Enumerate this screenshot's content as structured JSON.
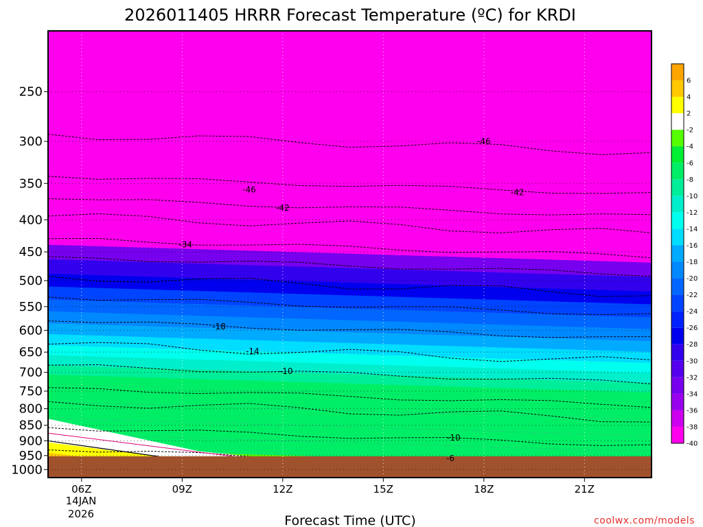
{
  "title": "2026011405 HRRR Forecast Temperature (ºC) for KRDI",
  "credit": "coolwx.com/models",
  "chart_data": {
    "type": "time-height contour",
    "xlabel": "Forecast Time (UTC)",
    "ylabel": "",
    "x_ticks": [
      "06Z",
      "09Z",
      "12Z",
      "15Z",
      "18Z",
      "21Z"
    ],
    "x_date": [
      "14JAN",
      "2026"
    ],
    "x_range_hours": [
      5,
      23
    ],
    "y_ticks": [
      250,
      300,
      350,
      400,
      450,
      500,
      550,
      600,
      650,
      700,
      750,
      800,
      850,
      900,
      950,
      1000
    ],
    "y_range_hpa": [
      1030,
      200
    ],
    "y_scale": "pressure (log)",
    "grid": "dotted",
    "surface_pressure_hpa": 970,
    "contour_interval_c": 4,
    "colorbar_labels": [
      "6",
      "4",
      "2",
      "-2",
      "-4",
      "-6",
      "-8",
      "-10",
      "-12",
      "-14",
      "-16",
      "-18",
      "-20",
      "-22",
      "-24",
      "-26",
      "-28",
      "-30",
      "-32",
      "-34",
      "-36",
      "-38",
      "-40"
    ],
    "colorbar_colors": [
      "#ffa500",
      "#ffc800",
      "#ffff00",
      "#ffffff",
      "#55ff00",
      "#00ee33",
      "#00ee66",
      "#00ee99",
      "#00eecc",
      "#00ffee",
      "#00ddff",
      "#00aaff",
      "#0088ff",
      "#0066ff",
      "#0044ff",
      "#0022ff",
      "#0000ee",
      "#3300ee",
      "#5500ee",
      "#7700ee",
      "#9900ee",
      "#cc00ee",
      "#ff00ee"
    ],
    "contour_labels": [
      {
        "text": "-46",
        "hour": 18.0,
        "hpa": 300
      },
      {
        "text": "-46",
        "hour": 11.0,
        "hpa": 358
      },
      {
        "text": "-42",
        "hour": 12.0,
        "hpa": 383
      },
      {
        "text": "-42",
        "hour": 19.0,
        "hpa": 362
      },
      {
        "text": "-34",
        "hour": 9.1,
        "hpa": 438
      },
      {
        "text": "-18",
        "hour": 10.1,
        "hpa": 592
      },
      {
        "text": "-14",
        "hour": 11.1,
        "hpa": 648
      },
      {
        "text": "-10",
        "hour": 12.1,
        "hpa": 697
      },
      {
        "text": "-10",
        "hour": 17.1,
        "hpa": 890
      },
      {
        "text": "-6",
        "hour": 17.0,
        "hpa": 960
      }
    ],
    "temperature_profile": [
      {
        "hpa": 250,
        "t": -50
      },
      {
        "hpa": 300,
        "t": -47
      },
      {
        "hpa": 350,
        "t": -45
      },
      {
        "hpa": 400,
        "t": -41
      },
      {
        "hpa": 450,
        "t": -34
      },
      {
        "hpa": 500,
        "t": -28
      },
      {
        "hpa": 550,
        "t": -23
      },
      {
        "hpa": 600,
        "t": -18
      },
      {
        "hpa": 650,
        "t": -14
      },
      {
        "hpa": 700,
        "t": -10
      },
      {
        "hpa": 750,
        "t": -9
      },
      {
        "hpa": 800,
        "t": -8
      },
      {
        "hpa": 850,
        "t": -9
      },
      {
        "hpa": 900,
        "t": -8
      },
      {
        "hpa": 950,
        "t": -5
      }
    ]
  }
}
